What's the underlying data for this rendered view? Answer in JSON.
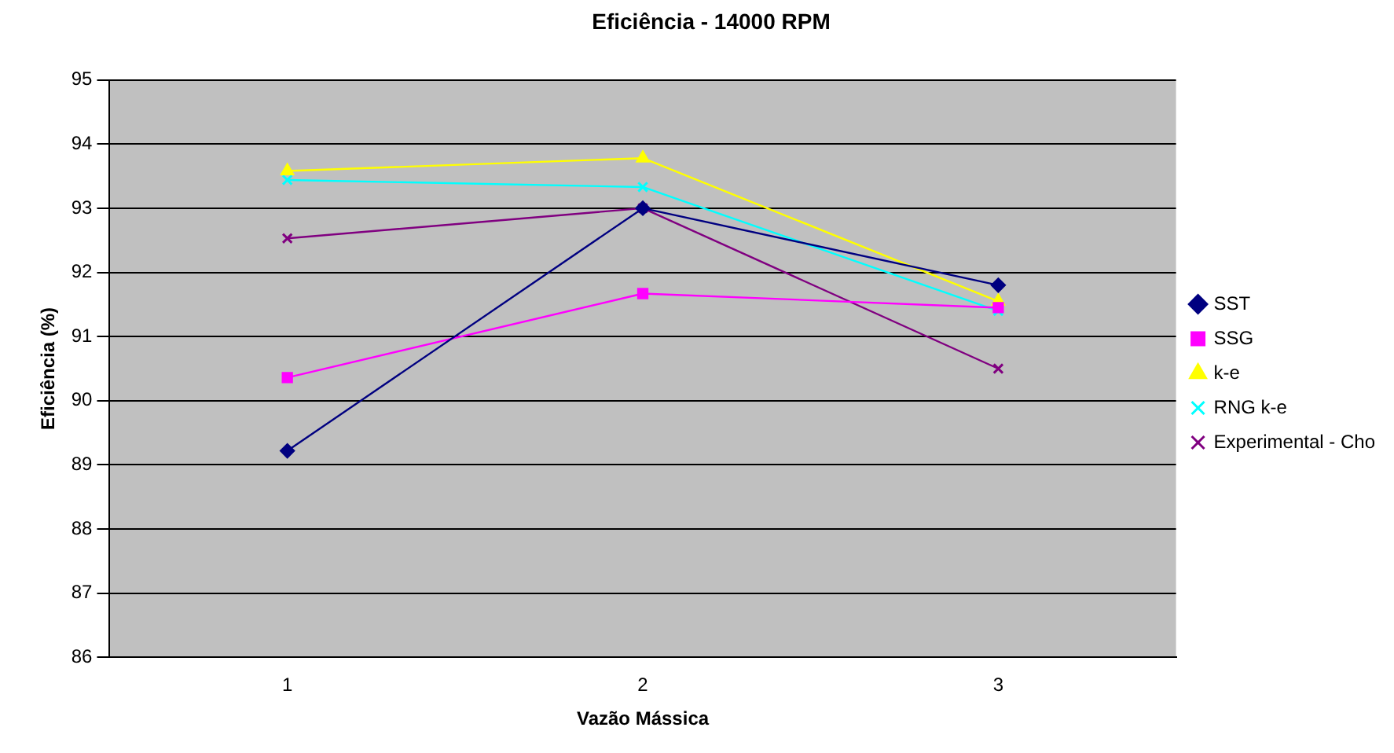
{
  "chart_data": {
    "type": "line",
    "title": "Eficiência - 14000 RPM",
    "xlabel": "Vazão Mássica",
    "ylabel": "Eficiência (%)",
    "categories": [
      "1",
      "2",
      "3"
    ],
    "series": [
      {
        "name": "SST",
        "color": "#000080",
        "marker": "diamond",
        "values": [
          89.22,
          93.0,
          91.8
        ]
      },
      {
        "name": "SSG",
        "color": "#ff00ff",
        "marker": "square",
        "values": [
          90.36,
          91.67,
          91.45
        ]
      },
      {
        "name": "k-e",
        "color": "#ffff00",
        "marker": "triangle",
        "values": [
          93.58,
          93.78,
          91.55
        ]
      },
      {
        "name": "RNG k-e",
        "color": "#00ffff",
        "marker": "cross",
        "values": [
          93.44,
          93.33,
          91.4
        ]
      },
      {
        "name": "Experimental - Cho",
        "color": "#800080",
        "marker": "cross",
        "values": [
          92.53,
          93.0,
          90.5
        ]
      }
    ],
    "ylim": [
      86,
      95
    ],
    "yticks": [
      86,
      87,
      88,
      89,
      90,
      91,
      92,
      93,
      94,
      95
    ],
    "grid": "y",
    "legend": "right"
  }
}
